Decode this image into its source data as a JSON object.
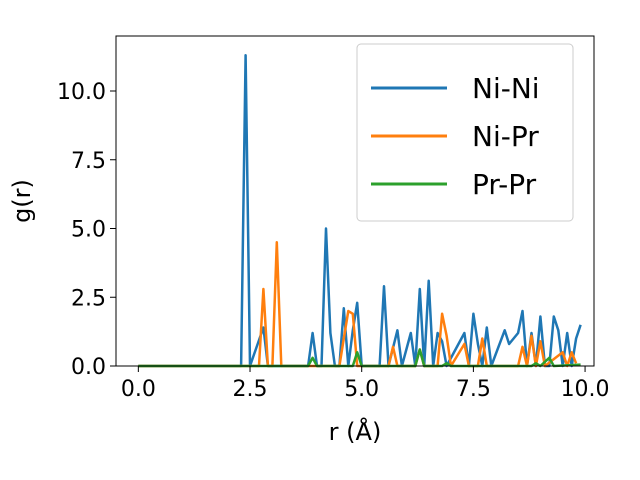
{
  "chart_data": {
    "type": "line",
    "xlabel": "r (Å)",
    "ylabel": "g(r)",
    "xlim": [
      -0.5,
      10.2
    ],
    "ylim": [
      0.0,
      12.0
    ],
    "xticks": [
      {
        "value": 0.0,
        "label": "0.0"
      },
      {
        "value": 2.5,
        "label": "2.5"
      },
      {
        "value": 5.0,
        "label": "5.0"
      },
      {
        "value": 7.5,
        "label": "7.5"
      },
      {
        "value": 10.0,
        "label": "10.0"
      }
    ],
    "yticks": [
      {
        "value": 0.0,
        "label": "0.0"
      },
      {
        "value": 2.5,
        "label": "2.5"
      },
      {
        "value": 5.0,
        "label": "5.0"
      },
      {
        "value": 7.5,
        "label": "7.5"
      },
      {
        "value": 10.0,
        "label": "10.0"
      }
    ],
    "grid": false,
    "legend_position": "top-right",
    "series": [
      {
        "name": "Ni-Ni",
        "color": "#1f77b4",
        "points": [
          [
            0.0,
            0.0
          ],
          [
            2.3,
            0.0
          ],
          [
            2.4,
            11.3
          ],
          [
            2.5,
            0.0
          ],
          [
            2.8,
            1.4
          ],
          [
            2.9,
            0.0
          ],
          [
            3.8,
            0.0
          ],
          [
            3.9,
            1.2
          ],
          [
            4.0,
            0.0
          ],
          [
            4.1,
            0.0
          ],
          [
            4.2,
            5.0
          ],
          [
            4.3,
            1.2
          ],
          [
            4.4,
            0.0
          ],
          [
            4.5,
            0.0
          ],
          [
            4.6,
            2.1
          ],
          [
            4.7,
            0.0
          ],
          [
            4.8,
            1.3
          ],
          [
            4.9,
            2.3
          ],
          [
            5.0,
            0.0
          ],
          [
            5.4,
            0.0
          ],
          [
            5.5,
            2.9
          ],
          [
            5.6,
            0.0
          ],
          [
            5.8,
            1.3
          ],
          [
            5.9,
            0.0
          ],
          [
            6.1,
            1.2
          ],
          [
            6.2,
            0.0
          ],
          [
            6.3,
            2.8
          ],
          [
            6.4,
            0.0
          ],
          [
            6.5,
            3.1
          ],
          [
            6.6,
            0.0
          ],
          [
            6.7,
            1.2
          ],
          [
            6.8,
            0.9
          ],
          [
            6.9,
            0.0
          ],
          [
            7.3,
            1.2
          ],
          [
            7.4,
            0.0
          ],
          [
            7.5,
            1.9
          ],
          [
            7.6,
            0.8
          ],
          [
            7.7,
            0.0
          ],
          [
            7.8,
            1.4
          ],
          [
            7.9,
            0.0
          ],
          [
            8.2,
            1.3
          ],
          [
            8.3,
            0.8
          ],
          [
            8.4,
            1.0
          ],
          [
            8.5,
            1.2
          ],
          [
            8.6,
            2.0
          ],
          [
            8.7,
            0.0
          ],
          [
            8.8,
            1.2
          ],
          [
            8.9,
            0.0
          ],
          [
            9.0,
            1.8
          ],
          [
            9.1,
            0.0
          ],
          [
            9.2,
            0.0
          ],
          [
            9.3,
            1.8
          ],
          [
            9.4,
            1.3
          ],
          [
            9.5,
            0.0
          ],
          [
            9.6,
            1.2
          ],
          [
            9.7,
            0.0
          ],
          [
            9.8,
            1.0
          ],
          [
            9.9,
            1.5
          ]
        ]
      },
      {
        "name": "Ni-Pr",
        "color": "#ff7f0e",
        "points": [
          [
            0.0,
            0.0
          ],
          [
            2.7,
            0.0
          ],
          [
            2.8,
            2.8
          ],
          [
            2.9,
            0.0
          ],
          [
            3.0,
            0.0
          ],
          [
            3.1,
            4.5
          ],
          [
            3.2,
            0.0
          ],
          [
            4.5,
            0.0
          ],
          [
            4.6,
            1.0
          ],
          [
            4.7,
            2.0
          ],
          [
            4.8,
            1.9
          ],
          [
            4.9,
            0.0
          ],
          [
            5.6,
            0.0
          ],
          [
            5.7,
            0.7
          ],
          [
            5.8,
            0.0
          ],
          [
            6.2,
            0.0
          ],
          [
            6.3,
            0.6
          ],
          [
            6.4,
            0.0
          ],
          [
            6.7,
            0.0
          ],
          [
            6.8,
            1.9
          ],
          [
            6.9,
            1.1
          ],
          [
            7.0,
            0.0
          ],
          [
            7.3,
            0.8
          ],
          [
            7.4,
            0.0
          ],
          [
            7.6,
            0.0
          ],
          [
            7.7,
            1.0
          ],
          [
            7.8,
            0.0
          ],
          [
            8.5,
            0.0
          ],
          [
            8.6,
            0.7
          ],
          [
            8.7,
            0.0
          ],
          [
            8.8,
            1.1
          ],
          [
            8.9,
            0.0
          ],
          [
            9.0,
            0.9
          ],
          [
            9.1,
            0.0
          ],
          [
            9.5,
            0.5
          ],
          [
            9.6,
            0.0
          ],
          [
            9.7,
            0.5
          ],
          [
            9.8,
            0.1
          ]
        ]
      },
      {
        "name": "Pr-Pr",
        "color": "#2ca02c",
        "points": [
          [
            0.0,
            0.0
          ],
          [
            3.8,
            0.0
          ],
          [
            3.9,
            0.3
          ],
          [
            4.0,
            0.0
          ],
          [
            4.8,
            0.0
          ],
          [
            4.9,
            0.5
          ],
          [
            5.0,
            0.0
          ],
          [
            6.2,
            0.0
          ],
          [
            6.3,
            0.6
          ],
          [
            6.4,
            0.0
          ],
          [
            6.8,
            0.0
          ],
          [
            6.9,
            0.1
          ],
          [
            7.0,
            0.0
          ],
          [
            8.8,
            0.0
          ],
          [
            8.9,
            0.1
          ],
          [
            9.0,
            0.0
          ],
          [
            9.2,
            0.3
          ],
          [
            9.3,
            0.0
          ],
          [
            9.9,
            0.05
          ]
        ]
      }
    ]
  }
}
